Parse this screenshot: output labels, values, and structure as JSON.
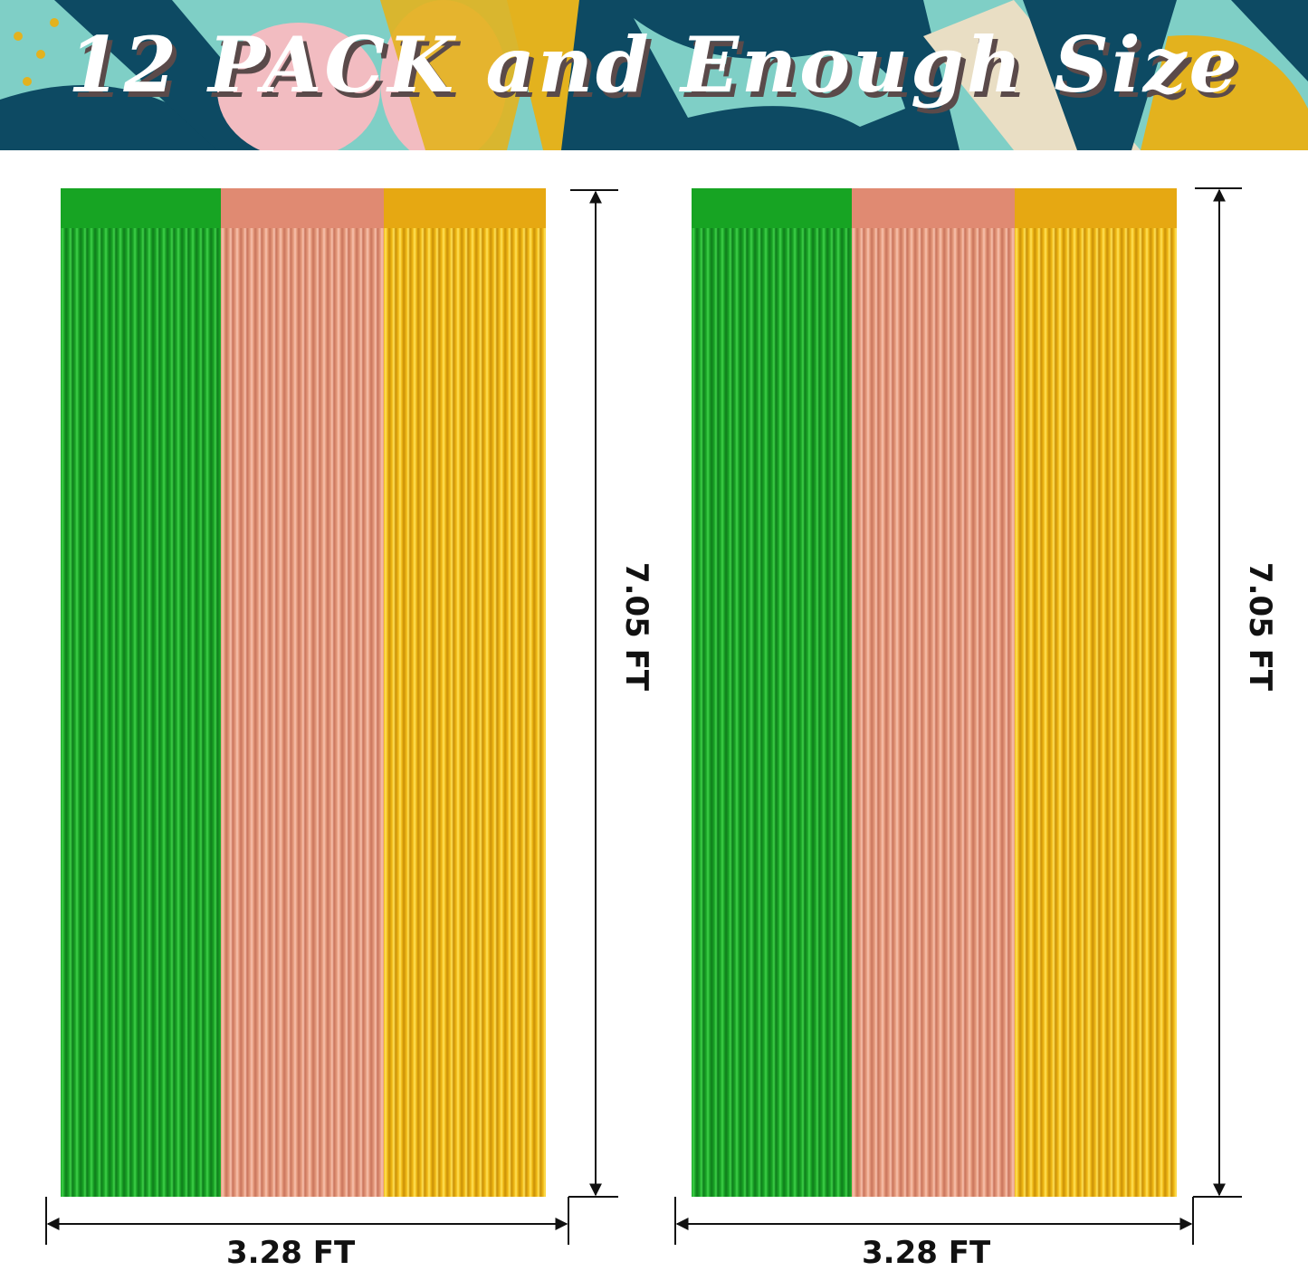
{
  "banner": {
    "title": "12 PACK and Enough Size"
  },
  "colors": {
    "green": "#1fa12a",
    "peach": "#e59a7c",
    "gold": "#f0b914",
    "banner_teal": "#7fcfc6",
    "banner_navy": "#0d4a63"
  },
  "curtains": [
    {
      "width_label": "3.28 FT",
      "height_label": "7.05 FT",
      "stripes": [
        "green",
        "peach",
        "gold"
      ]
    },
    {
      "width_label": "3.28 FT",
      "height_label": "7.05 FT",
      "stripes": [
        "green",
        "peach",
        "gold"
      ]
    }
  ]
}
